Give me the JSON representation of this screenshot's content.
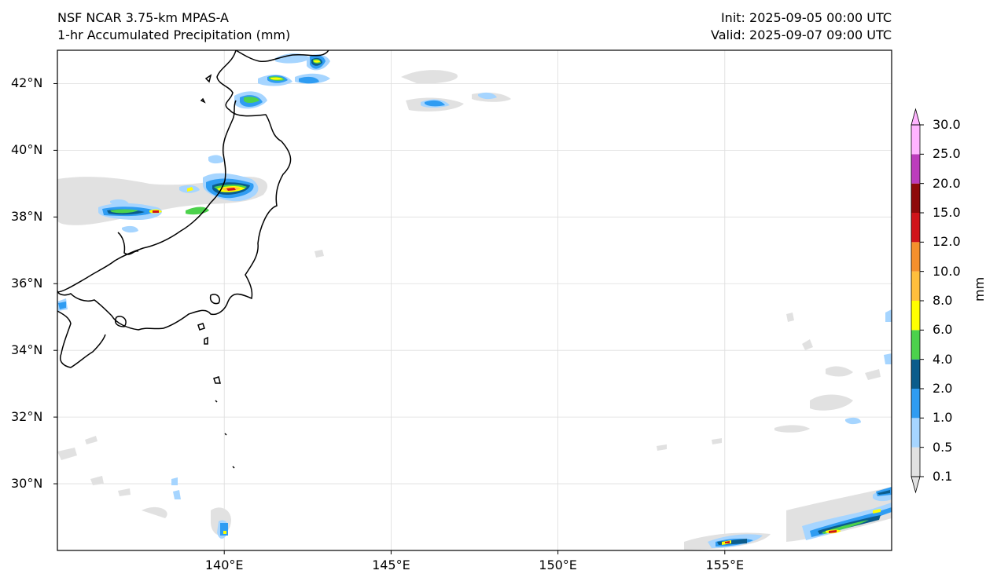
{
  "header": {
    "model": "NSF NCAR 3.75-km MPAS-A",
    "field": "1-hr Accumulated Precipitation (mm)",
    "init": "Init: 2025-09-05 00:00 UTC",
    "valid": "Valid: 2025-09-07 09:00 UTC"
  },
  "map": {
    "extent": {
      "lon_min": 135,
      "lon_max": 160,
      "lat_min": 28,
      "lat_max": 43
    },
    "lat_ticks": [
      {
        "value": 42,
        "label": "42°N"
      },
      {
        "value": 40,
        "label": "40°N"
      },
      {
        "value": 38,
        "label": "38°N"
      },
      {
        "value": 36,
        "label": "36°N"
      },
      {
        "value": 34,
        "label": "34°N"
      },
      {
        "value": 32,
        "label": "32°N"
      },
      {
        "value": 30,
        "label": "30°N"
      }
    ],
    "lon_ticks": [
      {
        "value": 140,
        "label": "140°E"
      },
      {
        "value": 145,
        "label": "145°E"
      },
      {
        "value": 150,
        "label": "150°E"
      },
      {
        "value": 155,
        "label": "155°E"
      }
    ]
  },
  "colorbar": {
    "unit": "mm",
    "levels": [
      "0.1",
      "0.5",
      "1.0",
      "2.0",
      "4.0",
      "6.0",
      "8.0",
      "10.0",
      "12.0",
      "15.0",
      "20.0",
      "25.0",
      "30.0"
    ],
    "colors": [
      "#e1e1e1",
      "#a6d5ff",
      "#2f9cf2",
      "#0b5c8c",
      "#4cd24c",
      "#ffff00",
      "#ffbf3c",
      "#f5902c",
      "#d0141a",
      "#8e0a0a",
      "#bc3cbc",
      "#ffb4ff"
    ]
  },
  "colors": {
    "coast": "#000000",
    "grid": "#dddddd"
  }
}
